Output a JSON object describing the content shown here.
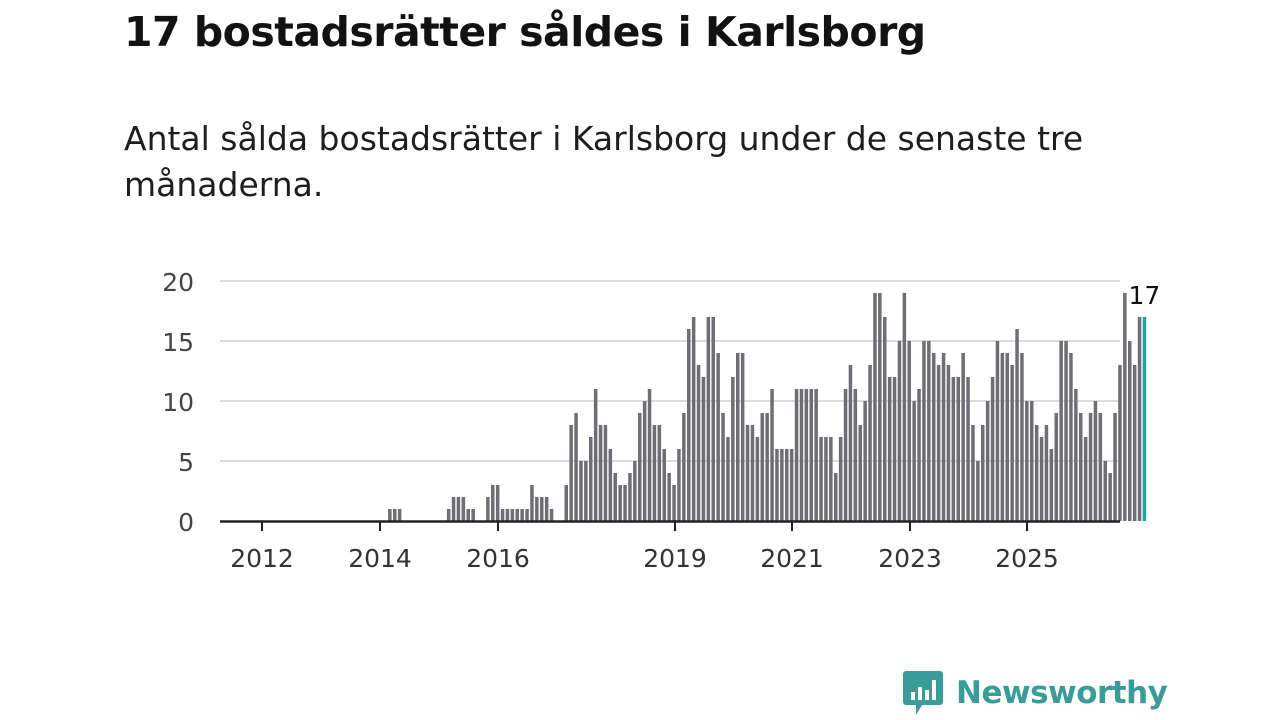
{
  "title": "17 bostadsrätter såldes i Karlsborg",
  "subtitle": "Antal sålda bostadsrätter i Karlsborg under de senaste tre månaderna.",
  "brand": {
    "name": "Newsworthy",
    "color": "#3a9c98"
  },
  "chart_data": {
    "type": "bar",
    "title": "17 bostadsrätter såldes i Karlsborg",
    "subtitle": "Antal sålda bostadsrätter i Karlsborg under de senaste tre månaderna.",
    "xlabel": "",
    "ylabel": "",
    "ylim": [
      0,
      20
    ],
    "yticks": [
      0,
      5,
      10,
      15,
      20
    ],
    "xtick_labels": [
      "2012",
      "2014",
      "2016",
      "2019",
      "2021",
      "2023",
      "2025"
    ],
    "grid": true,
    "bar_color": "#6e6e74",
    "highlight_color": "#1aa3a3",
    "highlight_label": "17",
    "x_period": "month, Jan 2011 – Feb 2026",
    "values": [
      0,
      0,
      0,
      0,
      0,
      0,
      0,
      0,
      0,
      0,
      0,
      0,
      0,
      0,
      0,
      0,
      0,
      0,
      0,
      0,
      0,
      0,
      0,
      0,
      0,
      0,
      0,
      0,
      0,
      0,
      0,
      0,
      0,
      0,
      1,
      1,
      1,
      0,
      0,
      0,
      0,
      0,
      0,
      0,
      0,
      0,
      1,
      2,
      2,
      2,
      1,
      1,
      0,
      0,
      2,
      3,
      3,
      1,
      1,
      1,
      1,
      1,
      1,
      3,
      2,
      2,
      2,
      1,
      0,
      0,
      3,
      8,
      9,
      5,
      5,
      7,
      11,
      8,
      8,
      6,
      4,
      3,
      3,
      4,
      5,
      9,
      10,
      11,
      8,
      8,
      6,
      4,
      3,
      6,
      9,
      16,
      17,
      13,
      12,
      17,
      17,
      14,
      9,
      7,
      12,
      14,
      14,
      8,
      8,
      7,
      9,
      9,
      11,
      6,
      6,
      6,
      6,
      11,
      11,
      11,
      11,
      11,
      7,
      7,
      7,
      4,
      7,
      11,
      13,
      11,
      8,
      10,
      13,
      19,
      19,
      17,
      12,
      12,
      15,
      19,
      15,
      10,
      11,
      15,
      15,
      14,
      13,
      14,
      13,
      12,
      12,
      14,
      12,
      8,
      5,
      8,
      10,
      12,
      15,
      14,
      14,
      13,
      16,
      14,
      10,
      10,
      8,
      7,
      8,
      6,
      9,
      15,
      15,
      14,
      11,
      9,
      7,
      9,
      10,
      9,
      5,
      4,
      9,
      13,
      19,
      15,
      13,
      17,
      17
    ]
  }
}
